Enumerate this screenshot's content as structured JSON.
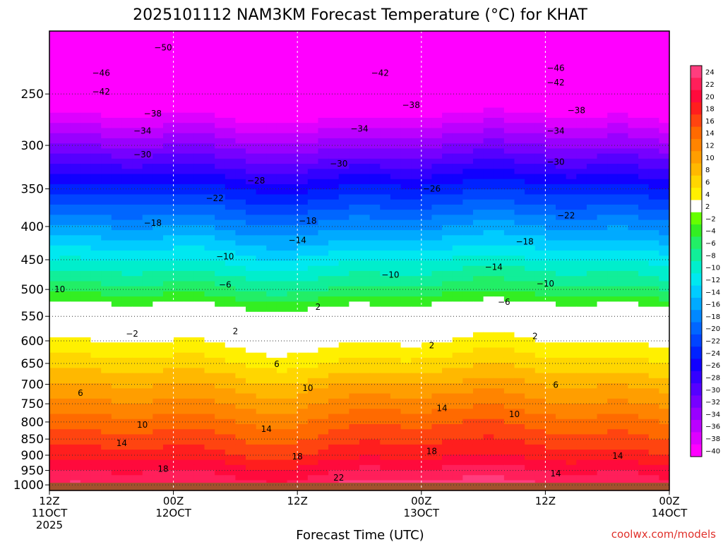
{
  "chart_data": {
    "type": "heatmap",
    "title": "2025101112 NAM3KM Forecast Temperature (°C) for KHAT",
    "xlabel": "Forecast Time (UTC)",
    "ylabel": "",
    "credit": "coolwx.com/models",
    "x_ticks": [
      {
        "hour": 0,
        "line1": "12Z",
        "line2": "11OCT",
        "line3": "2025"
      },
      {
        "hour": 12,
        "line1": "00Z",
        "line2": "12OCT",
        "line3": ""
      },
      {
        "hour": 24,
        "line1": "12Z",
        "line2": "",
        "line3": ""
      },
      {
        "hour": 36,
        "line1": "00Z",
        "line2": "13OCT",
        "line3": ""
      },
      {
        "hour": 48,
        "line1": "12Z",
        "line2": "",
        "line3": ""
      },
      {
        "hour": 60,
        "line1": "00Z",
        "line2": "14OCT",
        "line3": ""
      }
    ],
    "xlim": [
      0,
      60
    ],
    "y_ticks": [
      250,
      300,
      350,
      400,
      450,
      500,
      550,
      600,
      650,
      700,
      750,
      800,
      850,
      900,
      950,
      1000
    ],
    "ylim_hpa": [
      200,
      1020
    ],
    "y_scale": "log-pressure",
    "grid": true,
    "colorbar": {
      "levels": [
        24,
        22,
        20,
        18,
        16,
        14,
        12,
        10,
        8,
        6,
        4,
        2,
        -2,
        -4,
        -6,
        -8,
        -10,
        -12,
        -14,
        -16,
        -18,
        -20,
        -22,
        -24,
        -26,
        -28,
        -30,
        -32,
        -34,
        -36,
        -38,
        -40
      ],
      "label_texts": [
        "24",
        "22",
        "20",
        "18",
        "16",
        "14",
        "12",
        "10",
        "8",
        "6",
        "4",
        "2",
        "−2",
        "−4",
        "−6",
        "−8",
        "−10",
        "−12",
        "−14",
        "−16",
        "−18",
        "−20",
        "−22",
        "−24",
        "−26",
        "−28",
        "−30",
        "−32",
        "−34",
        "−36",
        "−38",
        "−40"
      ]
    },
    "profile_hpa": [
      200,
      250,
      300,
      350,
      400,
      450,
      500,
      550,
      600,
      650,
      700,
      750,
      800,
      850,
      900,
      950,
      1000
    ],
    "profile_temp": [
      -51,
      -43,
      -33,
      -24,
      -17,
      -11,
      -6,
      0,
      3,
      6,
      9,
      11.5,
      14,
      16,
      18,
      21,
      23
    ],
    "contour_labels": [
      {
        "text": "−50",
        "hour": 11,
        "hpa": 212
      },
      {
        "text": "−46",
        "hour": 5,
        "hpa": 232
      },
      {
        "text": "−42",
        "hour": 5,
        "hpa": 248
      },
      {
        "text": "−38",
        "hour": 10,
        "hpa": 268
      },
      {
        "text": "−34",
        "hour": 9,
        "hpa": 285
      },
      {
        "text": "−30",
        "hour": 9,
        "hpa": 310
      },
      {
        "text": "−22",
        "hour": 16,
        "hpa": 362
      },
      {
        "text": "−28",
        "hour": 20,
        "hpa": 340
      },
      {
        "text": "−18",
        "hour": 10,
        "hpa": 395
      },
      {
        "text": "−10",
        "hour": 17,
        "hpa": 445
      },
      {
        "text": "−6",
        "hour": 17,
        "hpa": 492
      },
      {
        "text": "10",
        "hour": 1,
        "hpa": 500
      },
      {
        "text": "−2",
        "hour": 8,
        "hpa": 585
      },
      {
        "text": "2",
        "hour": 18,
        "hpa": 580
      },
      {
        "text": "6",
        "hour": 22,
        "hpa": 652
      },
      {
        "text": "6",
        "hour": 3,
        "hpa": 722
      },
      {
        "text": "10",
        "hour": 9,
        "hpa": 808
      },
      {
        "text": "14",
        "hour": 7,
        "hpa": 862
      },
      {
        "text": "18",
        "hour": 11,
        "hpa": 945
      },
      {
        "text": "14",
        "hour": 21,
        "hpa": 820
      },
      {
        "text": "10",
        "hour": 25,
        "hpa": 710
      },
      {
        "text": "18",
        "hour": 24,
        "hpa": 905
      },
      {
        "text": "22",
        "hour": 28,
        "hpa": 975
      },
      {
        "text": "−18",
        "hour": 25,
        "hpa": 392
      },
      {
        "text": "−14",
        "hour": 24,
        "hpa": 420
      },
      {
        "text": "−30",
        "hour": 28,
        "hpa": 320
      },
      {
        "text": "−34",
        "hour": 30,
        "hpa": 283
      },
      {
        "text": "−10",
        "hour": 33,
        "hpa": 475
      },
      {
        "text": "2",
        "hour": 26,
        "hpa": 532
      },
      {
        "text": "−42",
        "hour": 32,
        "hpa": 232
      },
      {
        "text": "−38",
        "hour": 35,
        "hpa": 260
      },
      {
        "text": "−26",
        "hour": 37,
        "hpa": 350
      },
      {
        "text": "2",
        "hour": 37,
        "hpa": 610
      },
      {
        "text": "14",
        "hour": 38,
        "hpa": 762
      },
      {
        "text": "18",
        "hour": 37,
        "hpa": 888
      },
      {
        "text": "−14",
        "hour": 43,
        "hpa": 462
      },
      {
        "text": "−6",
        "hour": 44,
        "hpa": 523
      },
      {
        "text": "10",
        "hour": 45,
        "hpa": 778
      },
      {
        "text": "−18",
        "hour": 46,
        "hpa": 422
      },
      {
        "text": "−10",
        "hour": 48,
        "hpa": 490
      },
      {
        "text": "2",
        "hour": 47,
        "hpa": 590
      },
      {
        "text": "6",
        "hour": 49,
        "hpa": 702
      },
      {
        "text": "−22",
        "hour": 50,
        "hpa": 385
      },
      {
        "text": "−30",
        "hour": 49,
        "hpa": 318
      },
      {
        "text": "−34",
        "hour": 49,
        "hpa": 285
      },
      {
        "text": "−38",
        "hour": 51,
        "hpa": 265
      },
      {
        "text": "−42",
        "hour": 49,
        "hpa": 240
      },
      {
        "text": "−46",
        "hour": 49,
        "hpa": 228
      },
      {
        "text": "14",
        "hour": 55,
        "hpa": 902
      },
      {
        "text": "14",
        "hour": 49,
        "hpa": 960
      }
    ]
  },
  "colors": {
    "ground": "#a0522d",
    "credit": "#e0302a"
  }
}
